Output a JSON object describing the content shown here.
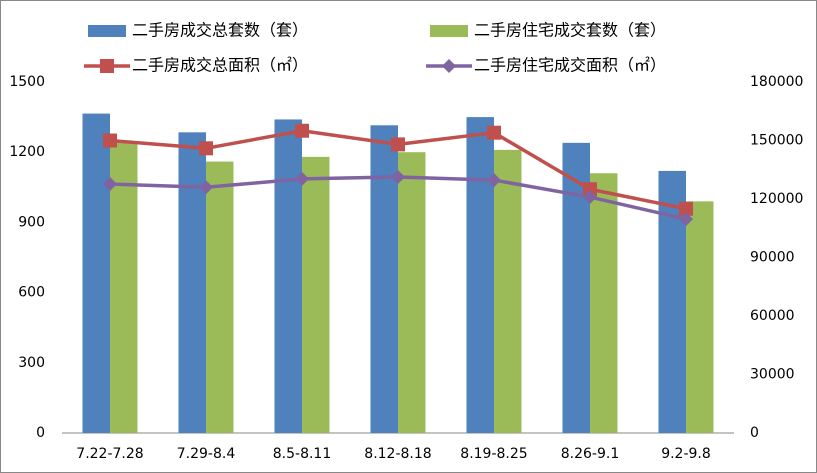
{
  "chart_data": {
    "type": "bar-line",
    "categories": [
      "7.22-7.28",
      "7.29-8.4",
      "8.5-8.11",
      "8.12-8.18",
      "8.19-8.25",
      "8.26-9.1",
      "9.2-9.8"
    ],
    "series": [
      {
        "name": "二手房成交总套数（套）",
        "type": "bar",
        "color": "#4f81bd",
        "values": [
          1365,
          1285,
          1340,
          1315,
          1350,
          1240,
          1120
        ]
      },
      {
        "name": "二手房住宅成交套数（套）",
        "type": "bar",
        "color": "#9bbb59",
        "values": [
          1245,
          1160,
          1180,
          1200,
          1210,
          1110,
          990
        ]
      },
      {
        "name": "二手房成交总面积（㎡）",
        "type": "line",
        "axis": "y2",
        "marker": "square",
        "color": "#c0504d",
        "values": [
          150000,
          146000,
          155000,
          148000,
          154000,
          125000,
          115000
        ]
      },
      {
        "name": "二手房住宅成交面积（㎡）",
        "type": "line",
        "axis": "y2",
        "marker": "diamond",
        "color": "#8064a2",
        "values": [
          127700,
          126000,
          130300,
          131300,
          129700,
          121000,
          109700
        ]
      }
    ],
    "ylim": [
      0,
      1500
    ],
    "yticks": [
      0,
      300,
      600,
      900,
      1200,
      1500
    ],
    "y2lim": [
      0,
      180000
    ],
    "y2ticks": [
      0,
      30000,
      60000,
      90000,
      120000,
      150000,
      180000
    ],
    "grid": false
  }
}
